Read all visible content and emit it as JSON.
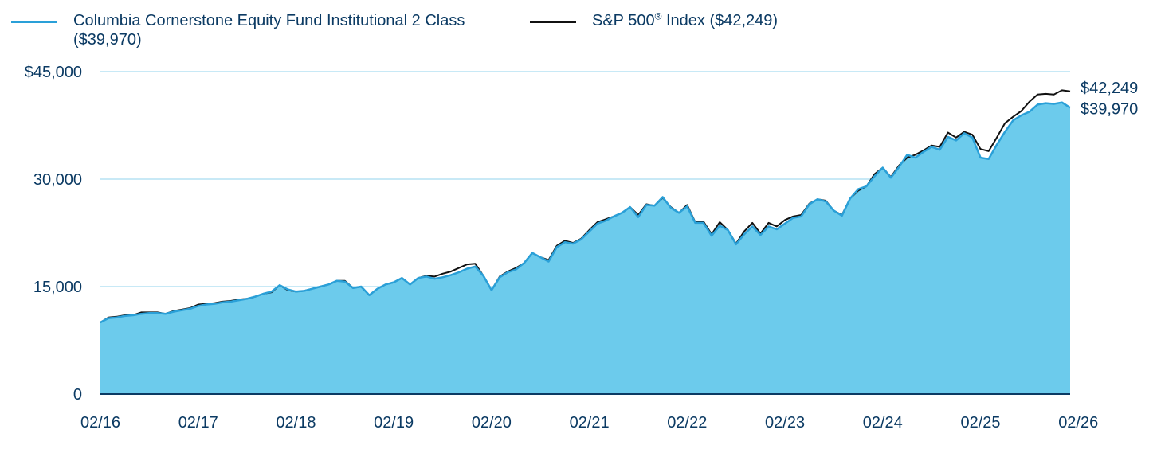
{
  "legend": {
    "fund_label": "Columbia Cornerstone Equity Fund Institutional 2 Class ($39,970)",
    "index_label_main": "S&P 500",
    "index_label_sup": "®",
    "index_label_rest": " Index ($42,249)"
  },
  "colors": {
    "fund_fill": "#6ccbec",
    "fund_line": "#2aa0d8",
    "index_line": "#111111",
    "grid": "#b6e2f3",
    "text": "#0b3a63"
  },
  "chart_data": {
    "type": "area",
    "ylim": [
      0,
      45000
    ],
    "y_ticks": [
      0,
      15000,
      30000,
      45000
    ],
    "y_tick_labels": [
      "0",
      "15,000",
      "30,000",
      "$45,000"
    ],
    "x_ticks": [
      0,
      12,
      24,
      36,
      48,
      60,
      72,
      84,
      96,
      108,
      120
    ],
    "x_tick_labels": [
      "02/16",
      "02/17",
      "02/18",
      "02/19",
      "02/20",
      "02/21",
      "02/22",
      "02/23",
      "02/24",
      "02/25",
      "02/26"
    ],
    "end_labels": {
      "index": "$42,249",
      "fund": "$39,970"
    },
    "series": [
      {
        "name": "Columbia Cornerstone Equity Fund Institutional 2 Class ($39,970)",
        "values": [
          10000,
          10600,
          10700,
          10900,
          11000,
          11200,
          11300,
          11300,
          11200,
          11500,
          11700,
          11900,
          12300,
          12500,
          12600,
          12800,
          12900,
          13100,
          13300,
          13600,
          14000,
          14300,
          15200,
          14600,
          14300,
          14400,
          14700,
          15000,
          15300,
          15800,
          15700,
          14800,
          15000,
          13800,
          14700,
          15300,
          15600,
          16200,
          15300,
          16200,
          16400,
          16100,
          16300,
          16600,
          17000,
          17500,
          17800,
          16500,
          14500,
          16300,
          17000,
          17400,
          18300,
          19700,
          19100,
          18500,
          20500,
          21200,
          21000,
          21600,
          22700,
          23800,
          24200,
          24800,
          25300,
          26100,
          24700,
          26400,
          26300,
          27500,
          26000,
          25300,
          26200,
          23900,
          23900,
          22100,
          23500,
          22900,
          20900,
          22300,
          23400,
          22200,
          23400,
          23000,
          23800,
          24600,
          24800,
          26500,
          27200,
          26900,
          25600,
          24900,
          27300,
          28600,
          29000,
          30400,
          31600,
          30200,
          31700,
          33400,
          33000,
          33800,
          34500,
          34100,
          35900,
          35400,
          36400,
          35800,
          33000,
          32800,
          34800,
          36600,
          38200,
          38900,
          39400,
          40400,
          40600,
          40500,
          40700,
          39970
        ]
      },
      {
        "name": "S&P 500® Index ($42,249)",
        "values": [
          10000,
          10700,
          10800,
          11000,
          11000,
          11400,
          11400,
          11400,
          11200,
          11600,
          11800,
          12000,
          12500,
          12600,
          12700,
          12900,
          13000,
          13200,
          13300,
          13600,
          14000,
          14200,
          15200,
          14500,
          14300,
          14400,
          14700,
          15000,
          15300,
          15800,
          15800,
          14800,
          15000,
          13800,
          14700,
          15300,
          15600,
          16200,
          15300,
          16200,
          16500,
          16400,
          16800,
          17100,
          17600,
          18100,
          18200,
          16500,
          14500,
          16400,
          17100,
          17600,
          18300,
          19700,
          19100,
          18700,
          20700,
          21400,
          21100,
          21700,
          22900,
          24000,
          24400,
          24800,
          25300,
          26100,
          25000,
          26500,
          26300,
          27400,
          26100,
          25300,
          26400,
          24000,
          24100,
          22300,
          24000,
          22900,
          21000,
          22700,
          23900,
          22400,
          23900,
          23400,
          24300,
          24800,
          25000,
          26600,
          27200,
          27000,
          25600,
          25000,
          27300,
          28400,
          29000,
          30700,
          31600,
          30300,
          31900,
          33000,
          33400,
          34000,
          34700,
          34500,
          36500,
          35800,
          36600,
          36200,
          34200,
          33900,
          35800,
          37800,
          38700,
          39500,
          40800,
          41800,
          41900,
          41800,
          42400,
          42249
        ]
      }
    ]
  }
}
